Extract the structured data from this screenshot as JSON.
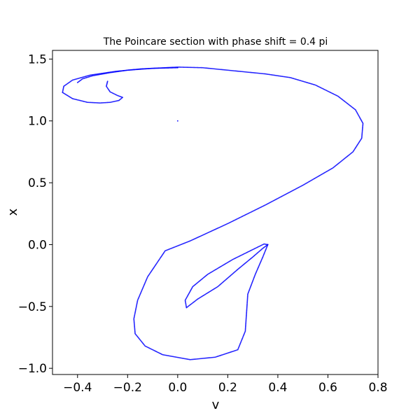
{
  "chart_data": {
    "type": "scatter",
    "title": "The Poincare section with phase shift = 0.4 pi",
    "xlabel": "v",
    "ylabel": "x",
    "xlim": [
      -0.5,
      0.8
    ],
    "ylim": [
      -1.05,
      1.57
    ],
    "xticks": [
      -0.4,
      -0.2,
      0.0,
      0.2,
      0.4,
      0.6,
      0.8
    ],
    "xtick_labels": [
      "−0.4",
      "−0.2",
      "0.0",
      "0.2",
      "0.4",
      "0.6",
      "0.8"
    ],
    "yticks": [
      -1.0,
      -0.5,
      0.0,
      0.5,
      1.0,
      1.5
    ],
    "ytick_labels": [
      "−1.0",
      "−0.5",
      "0.0",
      "0.5",
      "1.0",
      "1.5"
    ],
    "grid": false,
    "marker_color": "#0000ff",
    "series": [
      {
        "points": [
          [
            -0.28,
            1.32
          ],
          [
            -0.285,
            1.28
          ],
          [
            -0.27,
            1.235
          ],
          [
            -0.24,
            1.205
          ],
          [
            -0.22,
            1.19
          ],
          [
            -0.235,
            1.165
          ],
          [
            -0.27,
            1.15
          ],
          [
            -0.31,
            1.145
          ],
          [
            -0.36,
            1.15
          ],
          [
            -0.42,
            1.18
          ],
          [
            -0.46,
            1.23
          ],
          [
            -0.455,
            1.28
          ],
          [
            -0.42,
            1.33
          ],
          [
            -0.35,
            1.37
          ],
          [
            -0.25,
            1.4
          ],
          [
            -0.15,
            1.42
          ],
          [
            0.0,
            1.435
          ],
          [
            0.1,
            1.43
          ],
          [
            0.2,
            1.41
          ],
          [
            0.35,
            1.38
          ],
          [
            0.45,
            1.35
          ],
          [
            0.55,
            1.29
          ],
          [
            0.64,
            1.2
          ],
          [
            0.71,
            1.09
          ],
          [
            0.74,
            0.98
          ],
          [
            0.735,
            0.86
          ],
          [
            0.7,
            0.75
          ],
          [
            0.62,
            0.62
          ],
          [
            0.5,
            0.48
          ],
          [
            0.35,
            0.32
          ],
          [
            0.2,
            0.17
          ],
          [
            0.05,
            0.03
          ],
          [
            -0.05,
            -0.05
          ],
          [
            -0.12,
            -0.26
          ],
          [
            -0.16,
            -0.45
          ],
          [
            -0.175,
            -0.6
          ],
          [
            -0.17,
            -0.72
          ],
          [
            -0.13,
            -0.82
          ],
          [
            -0.06,
            -0.89
          ],
          [
            0.05,
            -0.93
          ],
          [
            0.15,
            -0.91
          ],
          [
            0.24,
            -0.85
          ],
          [
            0.27,
            -0.7
          ],
          [
            0.275,
            -0.55
          ],
          [
            0.28,
            -0.4
          ],
          [
            0.31,
            -0.24
          ],
          [
            0.34,
            -0.1
          ],
          [
            0.36,
            0.0
          ],
          [
            0.345,
            0.005
          ],
          [
            0.3,
            -0.04
          ],
          [
            0.22,
            -0.12
          ],
          [
            0.12,
            -0.24
          ],
          [
            0.06,
            -0.34
          ],
          [
            0.03,
            -0.45
          ],
          [
            0.035,
            -0.51
          ],
          [
            0.08,
            -0.44
          ],
          [
            0.16,
            -0.34
          ],
          [
            0.24,
            -0.2
          ],
          [
            0.3,
            -0.1
          ],
          [
            0.34,
            -0.03
          ],
          [
            0.36,
            0.0
          ]
        ]
      },
      {
        "points": [
          [
            -0.4,
            1.31
          ],
          [
            -0.38,
            1.34
          ],
          [
            -0.34,
            1.365
          ],
          [
            -0.27,
            1.39
          ],
          [
            -0.2,
            1.41
          ],
          [
            -0.1,
            1.425
          ],
          [
            0.0,
            1.43
          ]
        ]
      },
      {
        "points": [
          [
            0.0,
            1.0
          ]
        ]
      }
    ]
  }
}
